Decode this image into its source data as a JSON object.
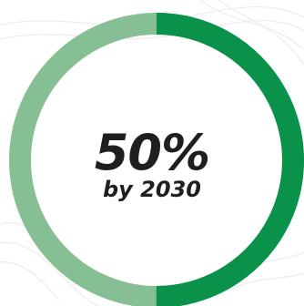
{
  "progress": {
    "value_text": "50%",
    "fraction": 0.5,
    "sub_label": "by 2030"
  },
  "colors": {
    "filled": "#0a914a",
    "track": "#87bf95",
    "text": "#1f1f1f",
    "pattern": "#ececec"
  }
}
